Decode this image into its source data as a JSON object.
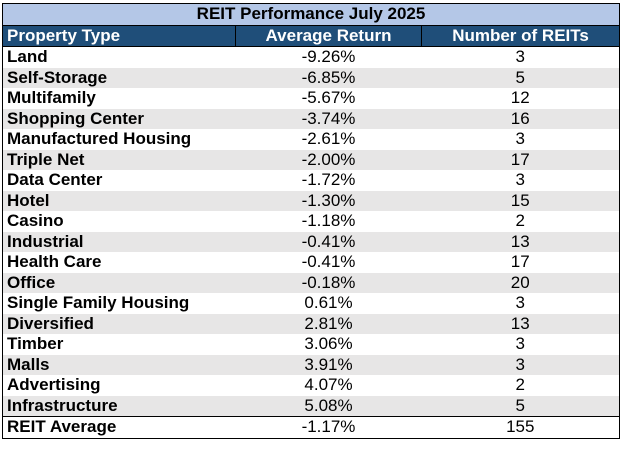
{
  "chart_data": {
    "type": "table",
    "title": "REIT Performance July 2025",
    "columns": [
      "Property Type",
      "Average Return",
      "Number of REITs"
    ],
    "rows": [
      {
        "property_type": "Land",
        "average_return": "-9.26%",
        "number_of_reits": "3"
      },
      {
        "property_type": "Self-Storage",
        "average_return": "-6.85%",
        "number_of_reits": "5"
      },
      {
        "property_type": "Multifamily",
        "average_return": "-5.67%",
        "number_of_reits": "12"
      },
      {
        "property_type": "Shopping Center",
        "average_return": "-3.74%",
        "number_of_reits": "16"
      },
      {
        "property_type": "Manufactured Housing",
        "average_return": "-2.61%",
        "number_of_reits": "3"
      },
      {
        "property_type": "Triple Net",
        "average_return": "-2.00%",
        "number_of_reits": "17"
      },
      {
        "property_type": "Data Center",
        "average_return": "-1.72%",
        "number_of_reits": "3"
      },
      {
        "property_type": "Hotel",
        "average_return": "-1.30%",
        "number_of_reits": "15"
      },
      {
        "property_type": "Casino",
        "average_return": "-1.18%",
        "number_of_reits": "2"
      },
      {
        "property_type": "Industrial",
        "average_return": "-0.41%",
        "number_of_reits": "13"
      },
      {
        "property_type": "Health Care",
        "average_return": "-0.41%",
        "number_of_reits": "17"
      },
      {
        "property_type": "Office",
        "average_return": "-0.18%",
        "number_of_reits": "20"
      },
      {
        "property_type": "Single Family Housing",
        "average_return": "0.61%",
        "number_of_reits": "3"
      },
      {
        "property_type": "Diversified",
        "average_return": "2.81%",
        "number_of_reits": "13"
      },
      {
        "property_type": "Timber",
        "average_return": "3.06%",
        "number_of_reits": "3"
      },
      {
        "property_type": "Malls",
        "average_return": "3.91%",
        "number_of_reits": "3"
      },
      {
        "property_type": "Advertising",
        "average_return": "4.07%",
        "number_of_reits": "2"
      },
      {
        "property_type": "Infrastructure",
        "average_return": "5.08%",
        "number_of_reits": "5"
      }
    ],
    "summary_row": {
      "property_type": "REIT Average",
      "average_return": "-1.17%",
      "number_of_reits": "155"
    }
  },
  "colors": {
    "title_band": "#b4c7e7",
    "header_band": "#1f4e79",
    "header_text": "#ffffff",
    "stripe": "#e7e6e6"
  }
}
